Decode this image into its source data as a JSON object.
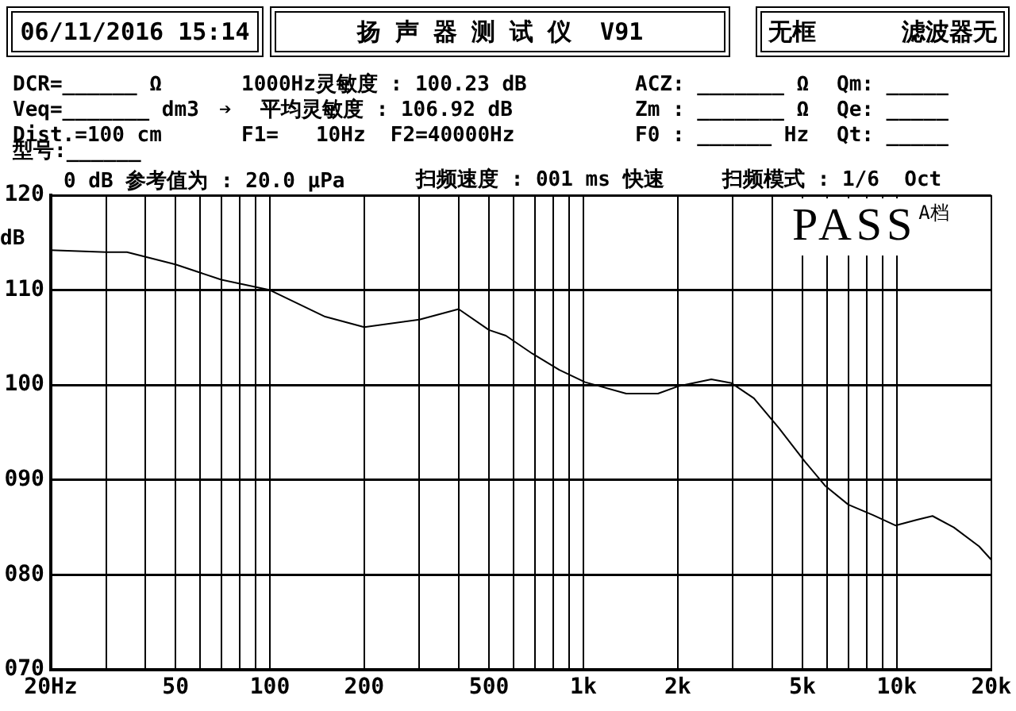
{
  "chart_data": {
    "type": "line",
    "ylabel": "dB",
    "log": "x",
    "grid": true,
    "marker": "none",
    "x": [
      20,
      30,
      35,
      50,
      70,
      100,
      150,
      200,
      300,
      400,
      500,
      566,
      688,
      838,
      1013,
      1370,
      1730,
      2020,
      2560,
      2970,
      3500,
      4200,
      5100,
      5900,
      7000,
      8400,
      9900,
      11600,
      13000,
      15200,
      18300,
      20000
    ],
    "series": [
      {
        "color": "#000000",
        "values": [
          114.2,
          114.0,
          114.0,
          112.7,
          111.1,
          110.0,
          107.2,
          106.1,
          106.9,
          108.0,
          105.8,
          105.2,
          103.3,
          101.6,
          100.3,
          99.1,
          99.1,
          99.9,
          100.6,
          100.2,
          98.6,
          95.5,
          91.9,
          89.4,
          87.4,
          86.3,
          85.2,
          85.8,
          86.2,
          85.0,
          83.0,
          81.6
        ]
      }
    ],
    "xlim": [
      20,
      20000
    ],
    "xticks": [
      {
        "value": 20,
        "label": "20Hz"
      },
      {
        "value": 30,
        "label": null
      },
      {
        "value": 40,
        "label": null
      },
      50,
      {
        "value": 60,
        "label": null
      },
      {
        "value": 70,
        "label": null
      },
      {
        "value": 80,
        "label": null
      },
      {
        "value": 90,
        "label": null
      },
      100,
      200,
      {
        "value": 300,
        "label": null
      },
      {
        "value": 400,
        "label": null
      },
      500,
      {
        "value": 600,
        "label": null
      },
      {
        "value": 700,
        "label": null
      },
      {
        "value": 800,
        "label": null
      },
      {
        "value": 900,
        "label": null
      },
      {
        "value": 1000,
        "label": "1k"
      },
      {
        "value": 2000,
        "label": "2k"
      },
      {
        "value": 3000,
        "label": null
      },
      {
        "value": 4000,
        "label": null
      },
      {
        "value": 5000,
        "label": "5k"
      },
      {
        "value": 6000,
        "label": null
      },
      {
        "value": 7000,
        "label": null
      },
      {
        "value": 8000,
        "label": null
      },
      {
        "value": 9000,
        "label": null
      },
      {
        "value": 10000,
        "label": "10k"
      },
      {
        "value": 20000,
        "label": "20k"
      }
    ],
    "ylim": [
      70,
      120
    ],
    "yticks": [
      {
        "value": 70,
        "label": "070"
      },
      {
        "value": 80,
        "label": "080"
      },
      {
        "value": 90,
        "label": "090"
      },
      100,
      110,
      120
    ],
    "annotations": [
      "06/11/2016 15:14",
      "扬 声 器 测 试 仪  V91",
      "无框",
      "滤波器无",
      "DCR=______ Ω",
      "1000Hz灵敏度 : 100.23 dB",
      "ACZ: _______ Ω",
      "Qm: _____",
      "Veq=_______ dm3",
      "➔",
      "平均灵敏度 : 106.92 dB",
      "Zm : _______ Ω",
      "Qe: _____",
      "Dist.=100 cm",
      "F1=   10Hz  F2=40000Hz",
      "F0 : ______ Hz",
      "Qt: _____",
      "型号:______",
      "0 dB 参考值为 : 20.0 μPa",
      "扫频速度 : 001 ms 快速",
      "扫频模式 : 1/6  Oct",
      "PASS",
      "A档"
    ]
  }
}
